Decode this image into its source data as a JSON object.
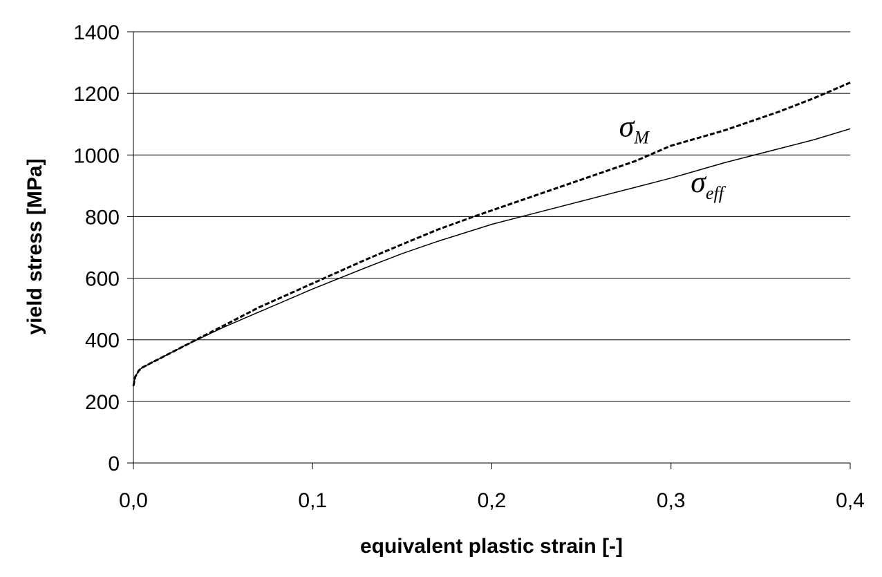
{
  "chart_data": {
    "type": "line",
    "xlabel": "equivalent plastic strain [-]",
    "ylabel": "yield stress [MPa]",
    "xlim": [
      0,
      0.4
    ],
    "ylim": [
      0,
      1400
    ],
    "x_ticks": [
      "0,0",
      "0,1",
      "0,2",
      "0,3",
      "0,4"
    ],
    "y_ticks": [
      "0",
      "200",
      "400",
      "600",
      "800",
      "1000",
      "1200",
      "1400"
    ],
    "grid": "horizontal",
    "series": [
      {
        "name": "σM",
        "label_symbol": "σ",
        "label_subscript": "M",
        "style": "dashed",
        "x": [
          0,
          0.001,
          0.003,
          0.005,
          0.01,
          0.02,
          0.03,
          0.05,
          0.07,
          0.1,
          0.13,
          0.15,
          0.17,
          0.19,
          0.2,
          0.22,
          0.25,
          0.28,
          0.3,
          0.33,
          0.36,
          0.38,
          0.4
        ],
        "y": [
          250,
          280,
          300,
          310,
          325,
          355,
          385,
          445,
          505,
          583,
          661,
          710,
          758,
          800,
          820,
          860,
          920,
          980,
          1030,
          1080,
          1140,
          1185,
          1235
        ]
      },
      {
        "name": "σeff",
        "label_symbol": "σ",
        "label_subscript": "eff",
        "style": "solid",
        "x": [
          0,
          0.001,
          0.003,
          0.005,
          0.01,
          0.02,
          0.03,
          0.05,
          0.07,
          0.1,
          0.13,
          0.15,
          0.17,
          0.2,
          0.22,
          0.25,
          0.28,
          0.3,
          0.33,
          0.36,
          0.38,
          0.4
        ],
        "y": [
          250,
          280,
          300,
          310,
          325,
          355,
          385,
          440,
          490,
          565,
          635,
          680,
          720,
          775,
          805,
          850,
          895,
          925,
          975,
          1020,
          1050,
          1085
        ]
      }
    ]
  }
}
